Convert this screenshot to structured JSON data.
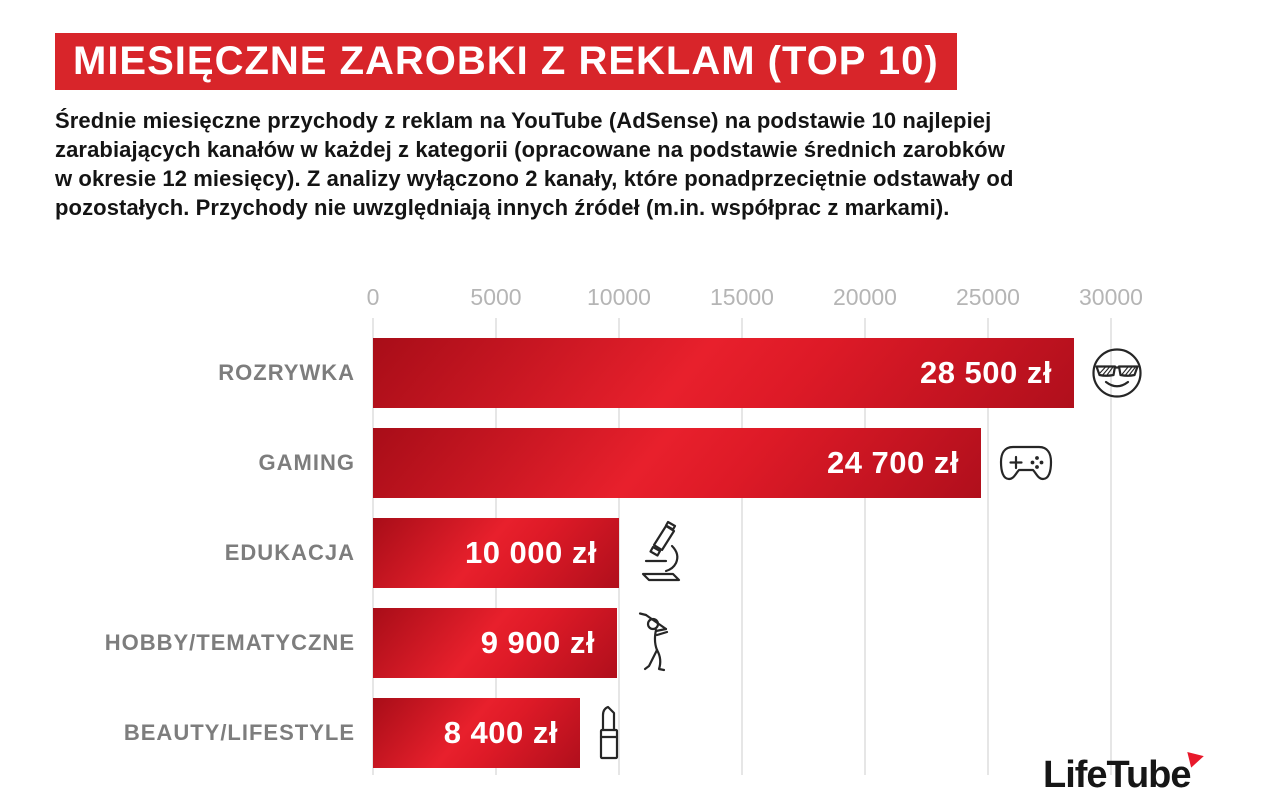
{
  "header": {
    "title": "MIESIĘCZNE ZAROBKI Z REKLAM (TOP 10)",
    "banner_color": "#d8252a"
  },
  "description": "Średnie miesięczne przychody z reklam na YouTube (AdSense) na podstawie 10 najlepiej\nzarabiających kanałów w każdej z kategorii (opracowane na podstawie średnich zarobków\nw okresie 12 miesięcy). Z analizy wyłączono 2 kanały, które ponadprzeciętnie odstawały od\npozostałych. Przychody nie uwzględniają innych źródeł (m.in. współprac z markami).",
  "chart_data": {
    "type": "bar",
    "orientation": "horizontal",
    "categories": [
      "ROZRYWKA",
      "GAMING",
      "EDUKACJA",
      "HOBBY/TEMATYCZNE",
      "BEAUTY/LIFESTYLE"
    ],
    "values": [
      28500,
      24700,
      10000,
      9900,
      8400
    ],
    "value_labels": [
      "28 500 zł",
      "24 700 zł",
      "10 000 zł",
      "9 900 zł",
      "8 400 zł"
    ],
    "icons": [
      "cool-face",
      "gamepad",
      "microscope",
      "golfer",
      "lipstick"
    ],
    "x_ticks": [
      "0",
      "5000",
      "10000",
      "15000",
      "20000",
      "25000",
      "30000"
    ],
    "xlim": [
      0,
      30000
    ],
    "grid": true,
    "legend": "none",
    "colors": {
      "bar_bright": "#e8202c",
      "bar_dark": "#a80d18",
      "category_label": "#7d7d7d",
      "tick_label": "#b5b5b5",
      "gridline": "#e6e6e6",
      "value_text": "#ffffff"
    }
  },
  "footer": {
    "logo_text": "LifeTube",
    "logo_accent": "#e8192b"
  }
}
